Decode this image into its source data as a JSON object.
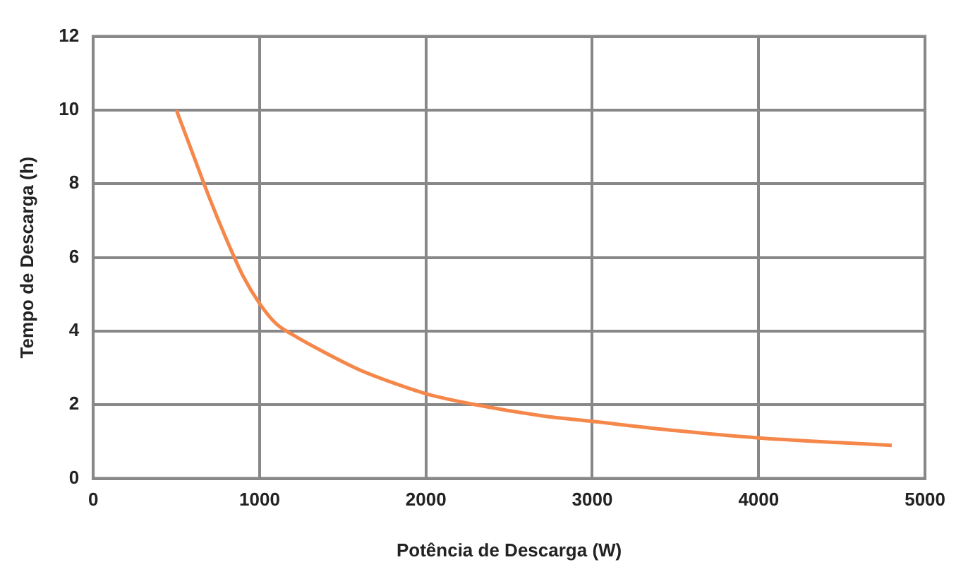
{
  "chart_data": {
    "type": "line",
    "xlabel": "Potência de Descarga (W)",
    "ylabel": "Tempo de Descarga (h)",
    "series": [
      {
        "color": "#f5874a",
        "x": [
          500,
          600,
          700,
          800,
          900,
          1000,
          1100,
          1200,
          1400,
          1600,
          1800,
          2000,
          2300,
          2700,
          3000,
          3500,
          4000,
          4500,
          4800
        ],
        "values": [
          10,
          8.8,
          7.6,
          6.5,
          5.5,
          4.75,
          4.2,
          3.9,
          3.4,
          2.95,
          2.6,
          2.3,
          2.0,
          1.7,
          1.55,
          1.3,
          1.1,
          0.97,
          0.9
        ]
      }
    ],
    "xlim": [
      0,
      5000
    ],
    "xticks": [
      0,
      1000,
      2000,
      3000,
      4000,
      5000
    ],
    "ylim": [
      0,
      12
    ],
    "yticks": [
      0,
      2,
      4,
      6,
      8,
      10,
      12
    ],
    "grid": true,
    "marker": "none",
    "line_style": "solid"
  }
}
